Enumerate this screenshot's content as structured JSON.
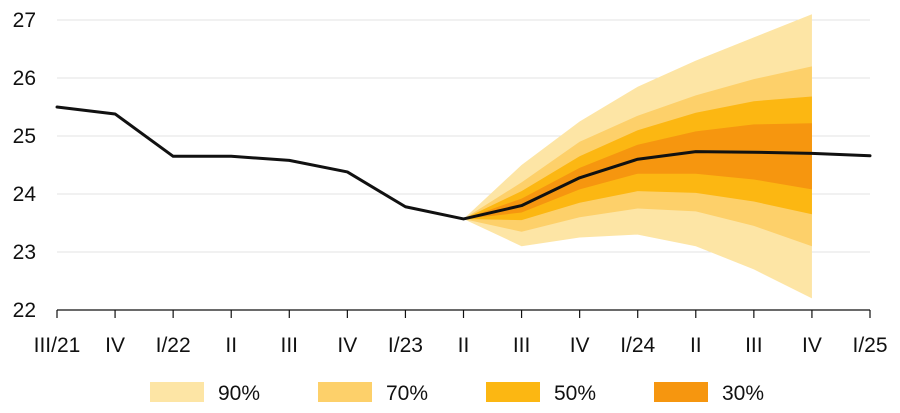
{
  "chart_data": {
    "type": "area",
    "title": "",
    "xlabel": "",
    "ylabel": "",
    "categories": [
      "III/21",
      "IV",
      "I/22",
      "II",
      "III",
      "IV",
      "I/23",
      "II",
      "III",
      "IV",
      "I/24",
      "II",
      "III",
      "IV",
      "I/25"
    ],
    "ylim": [
      22,
      27
    ],
    "yticks": [
      22,
      23,
      24,
      25,
      26,
      27
    ],
    "grid": "horizontal",
    "legend": "bottom",
    "line": {
      "color": "#111111",
      "values": [
        25.5,
        25.38,
        24.65,
        24.65,
        24.58,
        24.38,
        23.78,
        23.57,
        23.8,
        24.28,
        24.6,
        24.73,
        24.72,
        24.7,
        24.66
      ]
    },
    "fan_start_index": 7,
    "bands": [
      {
        "name": "90%",
        "color": "#FDE5A5",
        "upper": [
          23.57,
          24.5,
          25.25,
          25.85,
          26.3,
          26.7,
          27.1
        ],
        "lower": [
          23.57,
          23.1,
          23.25,
          23.3,
          23.1,
          22.7,
          22.2
        ]
      },
      {
        "name": "70%",
        "color": "#FDD06A",
        "upper": [
          23.57,
          24.2,
          24.9,
          25.35,
          25.7,
          25.98,
          26.2
        ],
        "lower": [
          23.57,
          23.35,
          23.6,
          23.75,
          23.7,
          23.45,
          23.1
        ]
      },
      {
        "name": "50%",
        "color": "#FCB712",
        "upper": [
          23.57,
          24.05,
          24.65,
          25.1,
          25.4,
          25.6,
          25.68
        ],
        "lower": [
          23.57,
          23.55,
          23.85,
          24.05,
          24.02,
          23.87,
          23.65
        ]
      },
      {
        "name": "30%",
        "color": "#F6960F",
        "upper": [
          23.57,
          23.92,
          24.45,
          24.85,
          25.08,
          25.2,
          25.22
        ],
        "lower": [
          23.57,
          23.68,
          24.08,
          24.35,
          24.35,
          24.25,
          24.08
        ]
      }
    ]
  }
}
